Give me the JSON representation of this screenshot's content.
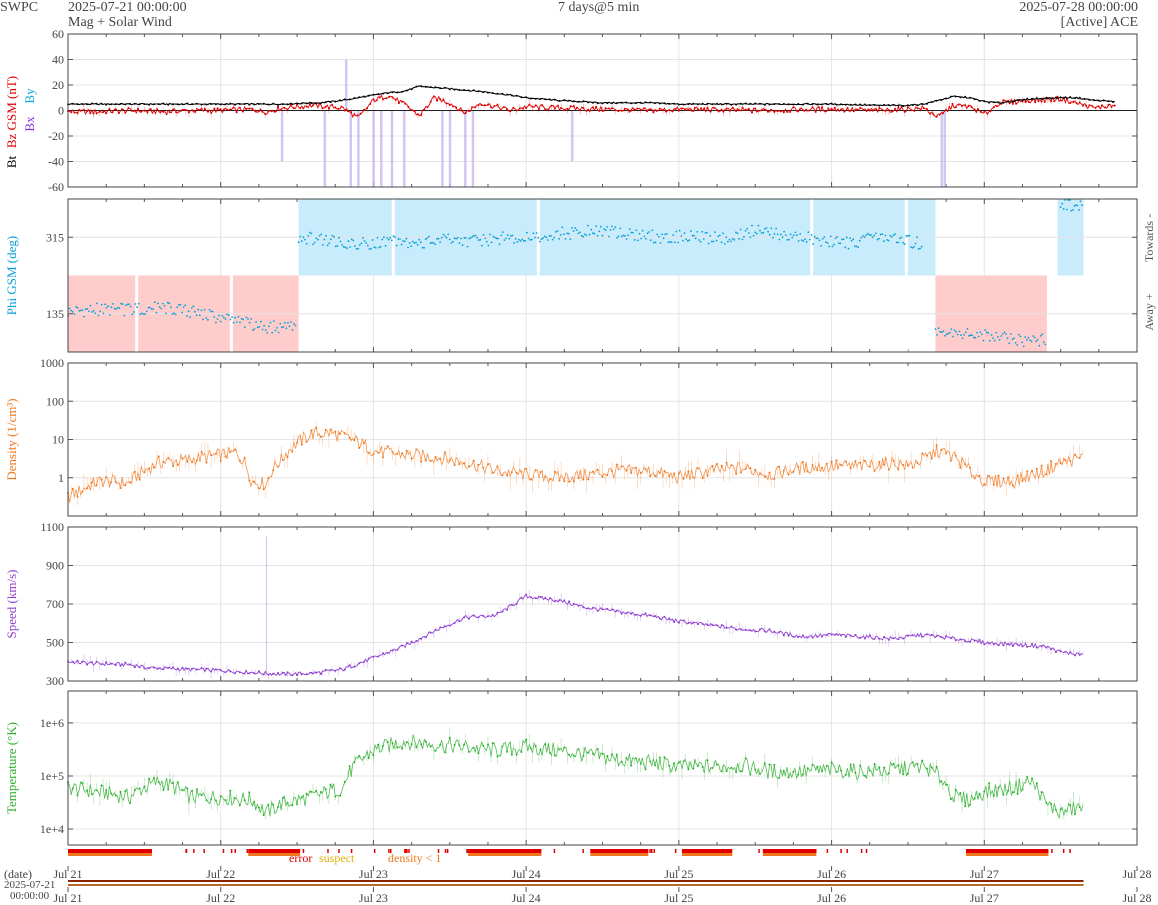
{
  "header": {
    "agency": "SWPC",
    "start_time": "2025-07-21 00:00:00",
    "subtitle": "Mag + Solar Wind",
    "cadence": "7 days@5 min",
    "end_time": "2025-07-28 00:00:00",
    "source": "[Active] ACE"
  },
  "colors": {
    "bt": "#000000",
    "bz": "#e00000",
    "bx": "#8a2be2",
    "by": "#00aadd",
    "phi": "#0aa0d8",
    "phi_towards_bg": "#c8ecfb",
    "phi_away_bg": "#ffcccc",
    "density": "#f07820",
    "speed": "#9040d0",
    "temperature": "#30b030",
    "error": "#e00000",
    "suspect": "#e0b000",
    "density_lt1": "#f07820"
  },
  "chart_data": [
    {
      "type": "line",
      "panel": "mag",
      "ylabel_parts": [
        "Bt",
        "Bz GSM (nT)"
      ],
      "legend_stack": [
        "Bx",
        "By"
      ],
      "ylim": [
        -60,
        60
      ],
      "yticks": [
        "60",
        "40",
        "20",
        "0",
        "-20",
        "-40",
        "-60"
      ],
      "grid": true,
      "series": [
        {
          "name": "Bt",
          "color_key": "bt",
          "x": [
            0,
            0.2,
            0.4,
            0.6,
            0.8,
            1.0,
            1.2,
            1.4,
            1.6,
            1.65,
            1.8,
            1.9,
            2.0,
            2.1,
            2.2,
            2.3,
            2.5,
            2.7,
            2.9,
            3.0,
            3.2,
            3.5,
            3.8,
            4.0,
            4.5,
            5.0,
            5.3,
            5.5,
            5.6,
            5.7,
            5.8,
            5.9,
            6.0,
            6.1,
            6.3,
            6.5,
            6.6,
            6.72,
            6.85
          ],
          "y": [
            5,
            5,
            5,
            5,
            5,
            5,
            5,
            5,
            6,
            6,
            8,
            10,
            12,
            14,
            15,
            19,
            17,
            15,
            12,
            10,
            8,
            6,
            6,
            5,
            5,
            5,
            4,
            4,
            5,
            8,
            11,
            10,
            7,
            6,
            9,
            10,
            10,
            8,
            7
          ]
        },
        {
          "name": "Bz",
          "color_key": "bz",
          "x": [
            0,
            0.2,
            0.4,
            0.6,
            0.8,
            1.0,
            1.2,
            1.3,
            1.4,
            1.6,
            1.8,
            1.9,
            2.0,
            2.1,
            2.2,
            2.3,
            2.4,
            2.5,
            2.6,
            2.7,
            2.8,
            2.9,
            3.0,
            3.2,
            3.5,
            3.8,
            4.0,
            4.5,
            5.0,
            5.3,
            5.5,
            5.6,
            5.7,
            5.8,
            5.9,
            6.0,
            6.1,
            6.3,
            6.5,
            6.6,
            6.72,
            6.85
          ],
          "y": [
            -1,
            -1,
            0,
            -1,
            0,
            0,
            1,
            -1,
            2,
            4,
            2,
            -6,
            8,
            12,
            5,
            -4,
            10,
            6,
            -2,
            6,
            3,
            0,
            3,
            2,
            1,
            0,
            1,
            0,
            1,
            0,
            1,
            2,
            -5,
            4,
            3,
            -3,
            6,
            8,
            9,
            6,
            2,
            4
          ]
        }
      ],
      "spikes": [
        {
          "x": 1.4,
          "y": -40
        },
        {
          "x": 1.68,
          "y": -60
        },
        {
          "x": 1.82,
          "y": 40
        },
        {
          "x": 1.85,
          "y": -60
        },
        {
          "x": 1.9,
          "y": -60
        },
        {
          "x": 2.0,
          "y": -60
        },
        {
          "x": 2.05,
          "y": -60
        },
        {
          "x": 2.12,
          "y": -60
        },
        {
          "x": 2.2,
          "y": -60
        },
        {
          "x": 2.45,
          "y": -60
        },
        {
          "x": 2.5,
          "y": -60
        },
        {
          "x": 2.6,
          "y": -60
        },
        {
          "x": 2.65,
          "y": -60
        },
        {
          "x": 3.3,
          "y": -40
        },
        {
          "x": 5.72,
          "y": -60
        },
        {
          "x": 5.74,
          "y": -60
        }
      ]
    },
    {
      "type": "scatter",
      "panel": "phi",
      "ylabel": "Phi GSM (deg)",
      "right_labels": [
        "Towards -",
        "Away +"
      ],
      "ylim": [
        45,
        405
      ],
      "yticks": [
        315,
        135
      ],
      "grid": true,
      "towards_intervals": [
        [
          1.51,
          5.68
        ],
        [
          6.48,
          6.65
        ]
      ],
      "away_intervals": [
        [
          0,
          1.51
        ],
        [
          5.68,
          6.41
        ]
      ],
      "series": [
        {
          "name": "Phi",
          "color_key": "phi",
          "x": [
            0,
            0.2,
            0.4,
            0.6,
            0.8,
            1.0,
            1.2,
            1.4,
            1.5,
            1.51,
            1.7,
            1.9,
            2.1,
            2.3,
            2.5,
            2.7,
            2.9,
            3.1,
            3.3,
            3.5,
            3.7,
            3.9,
            4.1,
            4.3,
            4.5,
            4.7,
            4.9,
            5.1,
            5.3,
            5.5,
            5.6,
            5.68,
            5.9,
            6.1,
            6.3,
            6.41,
            6.5,
            6.6,
            6.65
          ],
          "y": [
            140,
            145,
            145,
            150,
            140,
            125,
            110,
            100,
            105,
            315,
            310,
            300,
            305,
            300,
            310,
            305,
            315,
            320,
            325,
            330,
            320,
            315,
            320,
            310,
            330,
            320,
            310,
            300,
            315,
            305,
            300,
            95,
            90,
            80,
            70,
            75,
            395,
            390,
            392
          ]
        }
      ]
    },
    {
      "type": "line",
      "panel": "density",
      "ylabel": "Density (1/cm³)",
      "ylim": [
        0.1,
        1000
      ],
      "log_y": true,
      "yticks": [
        "1000",
        "100",
        "10",
        "1"
      ],
      "grid": true,
      "series": [
        {
          "name": "Density",
          "color_key": "density",
          "x": [
            0,
            0.1,
            0.2,
            0.3,
            0.4,
            0.5,
            0.6,
            0.8,
            1.0,
            1.1,
            1.2,
            1.3,
            1.4,
            1.5,
            1.6,
            1.7,
            1.8,
            2.0,
            2.2,
            2.4,
            2.6,
            2.8,
            3.0,
            3.2,
            3.4,
            3.6,
            3.8,
            4.0,
            4.2,
            4.4,
            4.6,
            4.8,
            5.0,
            5.2,
            5.4,
            5.5,
            5.6,
            5.7,
            5.8,
            5.9,
            6.0,
            6.2,
            6.4,
            6.5,
            6.6,
            6.65
          ],
          "y": [
            0.3,
            0.5,
            0.8,
            0.8,
            0.7,
            1.5,
            2.5,
            3.0,
            4.0,
            4.5,
            0.8,
            0.7,
            3.0,
            8.0,
            14.0,
            15.0,
            12.0,
            5.0,
            4.0,
            3.5,
            2.5,
            1.5,
            1.2,
            1.0,
            1.2,
            1.5,
            1.5,
            1.0,
            1.5,
            1.8,
            1.2,
            1.8,
            2.0,
            2.0,
            2.5,
            2.0,
            3.0,
            5.0,
            3.5,
            1.5,
            0.8,
            0.8,
            1.5,
            2.5,
            3.0,
            3.5
          ]
        }
      ]
    },
    {
      "type": "line",
      "panel": "speed",
      "ylabel": "Speed (km/s)",
      "ylim": [
        300,
        1100
      ],
      "yticks": [
        1100,
        900,
        700,
        500,
        300
      ],
      "grid": true,
      "series": [
        {
          "name": "Speed",
          "color_key": "speed",
          "x": [
            0,
            0.2,
            0.4,
            0.45,
            0.5,
            0.8,
            1.0,
            1.2,
            1.4,
            1.6,
            1.8,
            2.0,
            2.2,
            2.4,
            2.6,
            2.8,
            3.0,
            3.2,
            3.4,
            3.6,
            3.8,
            4.0,
            4.2,
            4.4,
            4.6,
            4.8,
            5.0,
            5.2,
            5.4,
            5.6,
            5.8,
            6.0,
            6.2,
            6.4,
            6.5,
            6.6,
            6.65
          ],
          "y": [
            400,
            390,
            385,
            380,
            370,
            360,
            355,
            345,
            335,
            340,
            360,
            420,
            480,
            560,
            630,
            640,
            740,
            720,
            680,
            660,
            640,
            610,
            590,
            570,
            560,
            530,
            540,
            530,
            520,
            540,
            520,
            500,
            490,
            480,
            450,
            440,
            440
          ]
        }
      ]
    },
    {
      "type": "line",
      "panel": "temperature",
      "ylabel": "Temperature (°K)",
      "ylim": [
        5000,
        4000000
      ],
      "log_y": true,
      "yticks": [
        "1e+6",
        "1e+5",
        "1e+4"
      ],
      "grid": true,
      "series": [
        {
          "name": "Temperature",
          "color_key": "temperature",
          "x": [
            0,
            0.2,
            0.4,
            0.6,
            0.8,
            1.0,
            1.2,
            1.3,
            1.4,
            1.6,
            1.8,
            2.0,
            2.2,
            2.4,
            2.6,
            2.8,
            3.0,
            3.2,
            3.4,
            3.6,
            3.8,
            4.0,
            4.2,
            4.4,
            4.6,
            4.8,
            5.0,
            5.2,
            5.4,
            5.6,
            5.7,
            5.8,
            5.9,
            6.0,
            6.2,
            6.3,
            6.4,
            6.5,
            6.6,
            6.65
          ],
          "y": [
            60000,
            50000,
            40000,
            80000,
            40000,
            40000,
            35000,
            20000,
            30000,
            40000,
            60000,
            300000,
            450000,
            400000,
            350000,
            300000,
            350000,
            300000,
            250000,
            200000,
            180000,
            150000,
            150000,
            160000,
            120000,
            120000,
            130000,
            120000,
            130000,
            150000,
            100000,
            40000,
            35000,
            50000,
            60000,
            80000,
            30000,
            20000,
            25000,
            25000
          ]
        }
      ]
    }
  ],
  "flag_legend": {
    "error": "error",
    "suspect": "suspect",
    "density_lt1": "density < 1"
  },
  "flag_segments": [
    [
      0,
      0.55
    ],
    [
      1.18,
      1.52
    ],
    [
      2.62,
      3.1
    ],
    [
      3.42,
      3.8
    ],
    [
      4.02,
      4.35
    ],
    [
      4.55,
      4.9
    ],
    [
      5.88,
      6.42
    ]
  ],
  "xaxis": {
    "days": 7,
    "labels": [
      "Jul 21",
      "Jul 22",
      "Jul 23",
      "Jul 24",
      "Jul 25",
      "Jul 26",
      "Jul 27",
      "Jul 28"
    ],
    "date_label": "(date)",
    "time_date": "2025-07-21",
    "time_clock": "00:00:00"
  }
}
